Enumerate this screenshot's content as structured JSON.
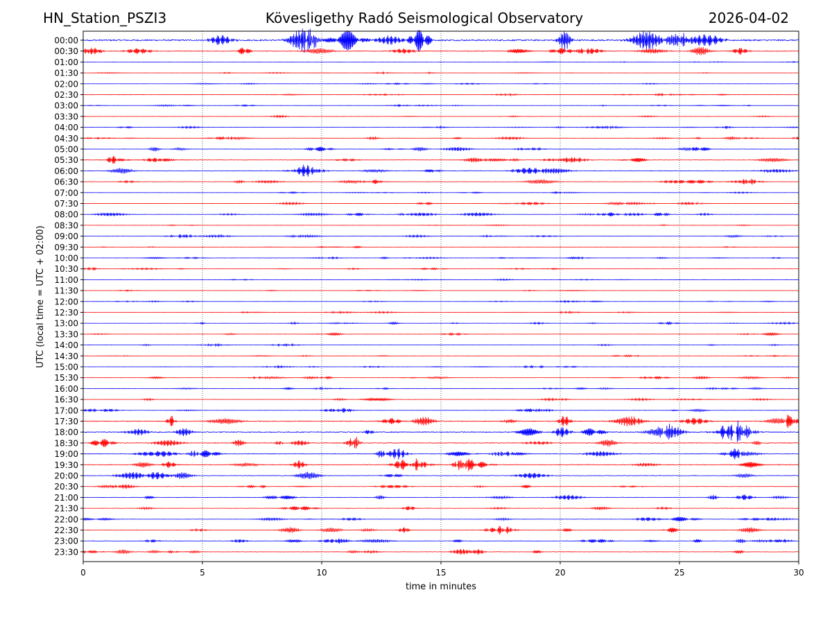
{
  "header": {
    "station": "HN_Station_PSZI3",
    "observatory": "Kövesligethy Radó Seismological Observatory",
    "date": "2026-04-02"
  },
  "chart_data": {
    "type": "line",
    "title": "Kövesligethy Radó Seismological Observatory",
    "xlabel": "time in minutes",
    "ylabel": "UTC (local time = UTC + 02:00)",
    "xlim": [
      0,
      30
    ],
    "x_ticks": [
      "0",
      "5",
      "10",
      "15",
      "20",
      "25",
      "30"
    ],
    "grid": "vertical dotted at 5-minute intervals",
    "colors": {
      "even_rows": "#0000ff",
      "odd_rows": "#ff0000",
      "frame": "#000000"
    },
    "rows": [
      {
        "label": "00:00",
        "amplitude": 0.55
      },
      {
        "label": "00:30",
        "amplitude": 0.25
      },
      {
        "label": "01:00",
        "amplitude": 0.03
      },
      {
        "label": "01:30",
        "amplitude": 0.03
      },
      {
        "label": "02:00",
        "amplitude": 0.04
      },
      {
        "label": "02:30",
        "amplitude": 0.04
      },
      {
        "label": "03:00",
        "amplitude": 0.04
      },
      {
        "label": "03:30",
        "amplitude": 0.04
      },
      {
        "label": "04:00",
        "amplitude": 0.05
      },
      {
        "label": "04:30",
        "amplitude": 0.08
      },
      {
        "label": "05:00",
        "amplitude": 0.12
      },
      {
        "label": "05:30",
        "amplitude": 0.14
      },
      {
        "label": "06:00",
        "amplitude": 0.2
      },
      {
        "label": "06:30",
        "amplitude": 0.12
      },
      {
        "label": "07:00",
        "amplitude": 0.04
      },
      {
        "label": "07:30",
        "amplitude": 0.07
      },
      {
        "label": "08:00",
        "amplitude": 0.1
      },
      {
        "label": "08:30",
        "amplitude": 0.04
      },
      {
        "label": "09:00",
        "amplitude": 0.06
      },
      {
        "label": "09:30",
        "amplitude": 0.04
      },
      {
        "label": "10:00",
        "amplitude": 0.04
      },
      {
        "label": "10:30",
        "amplitude": 0.04
      },
      {
        "label": "11:00",
        "amplitude": 0.04
      },
      {
        "label": "11:30",
        "amplitude": 0.03
      },
      {
        "label": "12:00",
        "amplitude": 0.04
      },
      {
        "label": "12:30",
        "amplitude": 0.04
      },
      {
        "label": "13:00",
        "amplitude": 0.05
      },
      {
        "label": "13:30",
        "amplitude": 0.05
      },
      {
        "label": "14:00",
        "amplitude": 0.04
      },
      {
        "label": "14:30",
        "amplitude": 0.03
      },
      {
        "label": "15:00",
        "amplitude": 0.03
      },
      {
        "label": "15:30",
        "amplitude": 0.07
      },
      {
        "label": "16:00",
        "amplitude": 0.05
      },
      {
        "label": "16:30",
        "amplitude": 0.06
      },
      {
        "label": "17:00",
        "amplitude": 0.08
      },
      {
        "label": "17:30",
        "amplitude": 0.3
      },
      {
        "label": "18:00",
        "amplitude": 0.35
      },
      {
        "label": "18:30",
        "amplitude": 0.25
      },
      {
        "label": "19:00",
        "amplitude": 0.22
      },
      {
        "label": "19:30",
        "amplitude": 0.25
      },
      {
        "label": "20:00",
        "amplitude": 0.2
      },
      {
        "label": "20:30",
        "amplitude": 0.1
      },
      {
        "label": "21:00",
        "amplitude": 0.15
      },
      {
        "label": "21:30",
        "amplitude": 0.12
      },
      {
        "label": "22:00",
        "amplitude": 0.12
      },
      {
        "label": "22:30",
        "amplitude": 0.15
      },
      {
        "label": "23:00",
        "amplitude": 0.15
      },
      {
        "label": "23:30",
        "amplitude": 0.15
      }
    ]
  }
}
